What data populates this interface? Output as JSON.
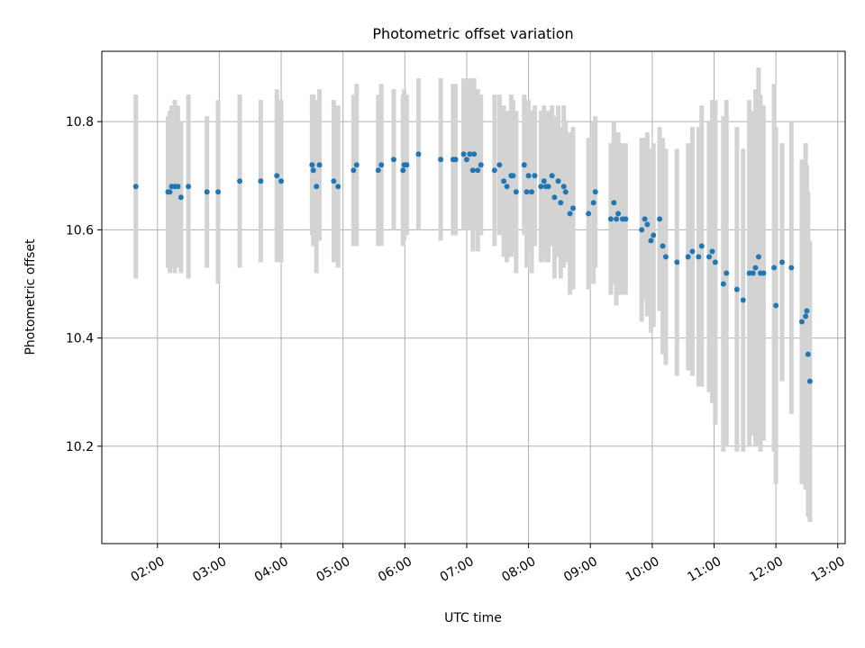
{
  "chart_data": {
    "type": "scatter",
    "title": "Photometric offset variation",
    "xlabel": "UTC time",
    "ylabel": "Photometric offset",
    "x_ticks": [
      "02:00",
      "03:00",
      "04:00",
      "05:00",
      "06:00",
      "07:00",
      "08:00",
      "09:00",
      "10:00",
      "11:00",
      "12:00",
      "13:00"
    ],
    "y_ticks": [
      "10.2",
      "10.4",
      "10.6",
      "10.8"
    ],
    "y_tick_values": [
      10.2,
      10.4,
      10.6,
      10.8
    ],
    "xlim_hours": [
      1.1,
      13.12
    ],
    "ylim": [
      10.02,
      10.93
    ],
    "grid": true,
    "colors": {
      "point": "#1f77b4",
      "errorbar": "#d3d3d3",
      "grid": "#b0b0b0"
    },
    "series": [
      {
        "x_hours": [
          1.65,
          2.17,
          2.2,
          2.23,
          2.28,
          2.33,
          2.38,
          2.5,
          2.8,
          2.98,
          3.33,
          3.67,
          3.93,
          4.0,
          4.5,
          4.52,
          4.57,
          4.62,
          4.85,
          4.92,
          5.17,
          5.22,
          5.57,
          5.62,
          5.82,
          5.97,
          5.99,
          6.03,
          6.22,
          6.58,
          6.78,
          6.82,
          6.95,
          7.0,
          7.05,
          7.1,
          7.12,
          7.18,
          7.23,
          7.45,
          7.53,
          7.6,
          7.65,
          7.72,
          7.75,
          7.8,
          7.93,
          7.97,
          8.0,
          8.05,
          8.1,
          8.2,
          8.25,
          8.28,
          8.32,
          8.38,
          8.42,
          8.48,
          8.52,
          8.57,
          8.6,
          8.67,
          8.72,
          8.97,
          9.05,
          9.08,
          9.33,
          9.38,
          9.42,
          9.45,
          9.52,
          9.57,
          9.83,
          9.88,
          9.92,
          9.98,
          10.02,
          10.12,
          10.17,
          10.22,
          10.4,
          10.58,
          10.65,
          10.75,
          10.8,
          10.92,
          10.97,
          11.02,
          11.15,
          11.2,
          11.37,
          11.47,
          11.57,
          11.63,
          11.67,
          11.72,
          11.75,
          11.8,
          11.97,
          12.0,
          12.1,
          12.25,
          12.42,
          12.48,
          12.5,
          12.52,
          12.55
        ],
        "y": [
          10.68,
          10.67,
          10.67,
          10.68,
          10.68,
          10.68,
          10.66,
          10.68,
          10.67,
          10.67,
          10.69,
          10.69,
          10.7,
          10.69,
          10.72,
          10.71,
          10.68,
          10.72,
          10.69,
          10.68,
          10.71,
          10.72,
          10.71,
          10.72,
          10.73,
          10.71,
          10.72,
          10.72,
          10.74,
          10.73,
          10.73,
          10.73,
          10.74,
          10.73,
          10.74,
          10.71,
          10.74,
          10.71,
          10.72,
          10.71,
          10.72,
          10.69,
          10.68,
          10.7,
          10.7,
          10.67,
          10.72,
          10.67,
          10.7,
          10.67,
          10.7,
          10.68,
          10.69,
          10.68,
          10.68,
          10.7,
          10.66,
          10.69,
          10.65,
          10.68,
          10.67,
          10.63,
          10.64,
          10.63,
          10.65,
          10.67,
          10.62,
          10.65,
          10.62,
          10.63,
          10.62,
          10.62,
          10.6,
          10.62,
          10.61,
          10.58,
          10.59,
          10.62,
          10.57,
          10.55,
          10.54,
          10.55,
          10.56,
          10.55,
          10.57,
          10.55,
          10.56,
          10.54,
          10.5,
          10.52,
          10.49,
          10.47,
          10.52,
          10.52,
          10.53,
          10.55,
          10.52,
          10.52,
          10.53,
          10.46,
          10.54,
          10.53,
          10.43,
          10.44,
          10.45,
          10.37,
          10.32
        ],
        "yerr": [
          0.17,
          0.14,
          0.15,
          0.15,
          0.16,
          0.15,
          0.14,
          0.17,
          0.14,
          0.17,
          0.16,
          0.15,
          0.16,
          0.15,
          0.13,
          0.14,
          0.16,
          0.14,
          0.15,
          0.15,
          0.14,
          0.15,
          0.14,
          0.15,
          0.13,
          0.14,
          0.14,
          0.13,
          0.14,
          0.15,
          0.14,
          0.14,
          0.14,
          0.13,
          0.14,
          0.15,
          0.14,
          0.15,
          0.13,
          0.14,
          0.13,
          0.14,
          0.14,
          0.15,
          0.14,
          0.15,
          0.13,
          0.14,
          0.14,
          0.15,
          0.13,
          0.14,
          0.14,
          0.14,
          0.14,
          0.13,
          0.15,
          0.14,
          0.14,
          0.15,
          0.13,
          0.15,
          0.15,
          0.14,
          0.15,
          0.14,
          0.14,
          0.15,
          0.16,
          0.15,
          0.14,
          0.14,
          0.17,
          0.15,
          0.17,
          0.17,
          0.17,
          0.17,
          0.2,
          0.2,
          0.21,
          0.21,
          0.23,
          0.24,
          0.26,
          0.25,
          0.28,
          0.3,
          0.31,
          0.32,
          0.3,
          0.28,
          0.32,
          0.3,
          0.33,
          0.35,
          0.33,
          0.31,
          0.34,
          0.33,
          0.22,
          0.27,
          0.3,
          0.32,
          0.27,
          0.3,
          0.26
        ]
      }
    ]
  }
}
